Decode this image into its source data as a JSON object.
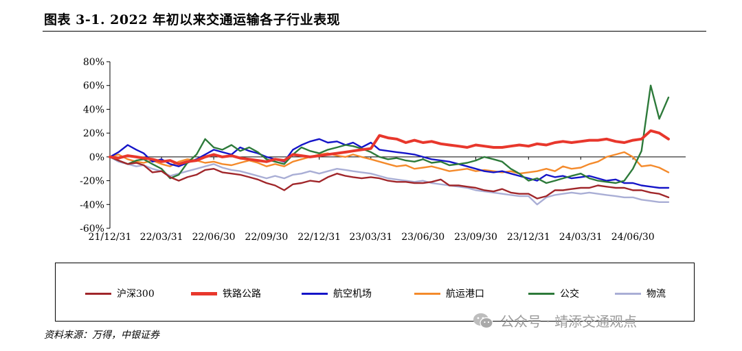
{
  "figure": {
    "title": "图表 3-1. 2022 年初以来交通运输各子行业表现",
    "source": "资料来源：万得，中银证券",
    "watermark": "公众号 · 靖添交通观点",
    "watermark_icon": "wechat-icon"
  },
  "chart_data": {
    "type": "line",
    "title": "",
    "xlabel": "",
    "ylabel": "",
    "ylim": [
      -60,
      80
    ],
    "yticks": [
      -60,
      -40,
      -20,
      0,
      20,
      40,
      60,
      80
    ],
    "ytick_labels": [
      "-60%",
      "-40%",
      "-20%",
      "0%",
      "20%",
      "40%",
      "60%",
      "80%"
    ],
    "x_range": [
      "21/12/31",
      "24/09/30"
    ],
    "xtick_labels": [
      "21/12/31",
      "22/03/31",
      "22/06/30",
      "22/09/30",
      "22/12/31",
      "23/03/31",
      "23/06/30",
      "23/09/30",
      "23/12/31",
      "24/03/31",
      "24/06/30"
    ],
    "grid": false,
    "legend_position": "bottom",
    "series": [
      {
        "name": "沪深300",
        "color": "#A0262A",
        "x": [
          "21/12/31",
          "22/01/15",
          "22/01/31",
          "22/02/15",
          "22/02/28",
          "22/03/15",
          "22/03/31",
          "22/04/15",
          "22/04/30",
          "22/05/15",
          "22/05/31",
          "22/06/15",
          "22/06/30",
          "22/07/15",
          "22/07/31",
          "22/08/15",
          "22/08/31",
          "22/09/15",
          "22/09/30",
          "22/10/15",
          "22/10/31",
          "22/11/15",
          "22/11/30",
          "22/12/15",
          "22/12/31",
          "23/01/15",
          "23/01/31",
          "23/02/15",
          "23/02/28",
          "23/03/15",
          "23/03/31",
          "23/04/15",
          "23/04/30",
          "23/05/15",
          "23/05/31",
          "23/06/15",
          "23/06/30",
          "23/07/15",
          "23/07/31",
          "23/08/15",
          "23/08/31",
          "23/09/15",
          "23/09/30",
          "23/10/15",
          "23/10/31",
          "23/11/15",
          "23/11/30",
          "23/12/15",
          "23/12/31",
          "24/01/15",
          "24/01/31",
          "24/02/15",
          "24/02/29",
          "24/03/15",
          "24/03/31",
          "24/04/15",
          "24/04/30",
          "24/05/15",
          "24/05/31",
          "24/06/15",
          "24/06/30",
          "24/07/15",
          "24/07/31",
          "24/08/15",
          "24/08/31"
        ],
        "y": [
          0,
          -3,
          -6,
          -5,
          -7,
          -13,
          -12,
          -17,
          -20,
          -17,
          -15,
          -11,
          -10,
          -13,
          -14,
          -15,
          -17,
          -19,
          -22,
          -24,
          -28,
          -23,
          -22,
          -20,
          -21,
          -17,
          -14,
          -16,
          -17,
          -18,
          -17,
          -18,
          -20,
          -21,
          -21,
          -22,
          -22,
          -21,
          -19,
          -24,
          -24,
          -25,
          -26,
          -28,
          -29,
          -27,
          -30,
          -31,
          -31,
          -35,
          -33,
          -28,
          -28,
          -27,
          -26,
          -26,
          -24,
          -25,
          -26,
          -26,
          -28,
          -28,
          -30,
          -31,
          -34
        ]
      },
      {
        "name": "铁路公路",
        "color": "#E8372C",
        "x": [
          "21/12/31",
          "22/01/15",
          "22/01/31",
          "22/02/15",
          "22/02/28",
          "22/03/15",
          "22/03/31",
          "22/04/15",
          "22/04/30",
          "22/05/15",
          "22/05/31",
          "22/06/15",
          "22/06/30",
          "22/07/15",
          "22/07/31",
          "22/08/15",
          "22/08/31",
          "22/09/15",
          "22/09/30",
          "22/10/15",
          "22/10/31",
          "22/11/15",
          "22/11/30",
          "22/12/15",
          "22/12/31",
          "23/01/15",
          "23/01/31",
          "23/02/15",
          "23/02/28",
          "23/03/15",
          "23/03/31",
          "23/04/15",
          "23/04/30",
          "23/05/15",
          "23/05/31",
          "23/06/15",
          "23/06/30",
          "23/07/15",
          "23/07/31",
          "23/08/15",
          "23/08/31",
          "23/09/15",
          "23/09/30",
          "23/10/15",
          "23/10/31",
          "23/11/15",
          "23/11/30",
          "23/12/15",
          "23/12/31",
          "24/01/15",
          "24/01/31",
          "24/02/15",
          "24/02/29",
          "24/03/15",
          "24/03/31",
          "24/04/15",
          "24/04/30",
          "24/05/15",
          "24/05/31",
          "24/06/15",
          "24/06/30",
          "24/07/15",
          "24/07/31",
          "24/08/15",
          "24/08/31"
        ],
        "y": [
          0,
          -1,
          1,
          0,
          -1,
          -2,
          -4,
          -3,
          -6,
          -4,
          -3,
          0,
          2,
          0,
          1,
          -1,
          -2,
          -3,
          -4,
          -2,
          -3,
          2,
          1,
          0,
          1,
          2,
          3,
          4,
          5,
          6,
          7,
          18,
          16,
          15,
          12,
          14,
          12,
          13,
          11,
          10,
          9,
          8,
          10,
          9,
          8,
          8,
          9,
          10,
          9,
          11,
          10,
          12,
          13,
          12,
          13,
          14,
          14,
          15,
          13,
          12,
          14,
          15,
          22,
          20,
          15
        ]
      },
      {
        "name": "航空机场",
        "color": "#1414C8",
        "x": [
          "21/12/31",
          "22/01/15",
          "22/01/31",
          "22/02/15",
          "22/02/28",
          "22/03/15",
          "22/03/31",
          "22/04/15",
          "22/04/30",
          "22/05/15",
          "22/05/31",
          "22/06/15",
          "22/06/30",
          "22/07/15",
          "22/07/31",
          "22/08/15",
          "22/08/31",
          "22/09/15",
          "22/09/30",
          "22/10/15",
          "22/10/31",
          "22/11/15",
          "22/11/30",
          "22/12/15",
          "22/12/31",
          "23/01/15",
          "23/01/31",
          "23/02/15",
          "23/02/28",
          "23/03/15",
          "23/03/31",
          "23/04/15",
          "23/04/30",
          "23/05/15",
          "23/05/31",
          "23/06/15",
          "23/06/30",
          "23/07/15",
          "23/07/31",
          "23/08/15",
          "23/08/31",
          "23/09/15",
          "23/09/30",
          "23/10/15",
          "23/10/31",
          "23/11/15",
          "23/11/30",
          "23/12/15",
          "23/12/31",
          "24/01/15",
          "24/01/31",
          "24/02/15",
          "24/02/29",
          "24/03/15",
          "24/03/31",
          "24/04/15",
          "24/04/30",
          "24/05/15",
          "24/05/31",
          "24/06/15",
          "24/06/30",
          "24/07/15",
          "24/07/31",
          "24/08/15",
          "24/08/31"
        ],
        "y": [
          0,
          4,
          10,
          6,
          3,
          -4,
          -2,
          -6,
          -8,
          -5,
          -2,
          2,
          6,
          4,
          2,
          8,
          5,
          3,
          0,
          -2,
          -4,
          6,
          10,
          13,
          15,
          12,
          13,
          10,
          12,
          8,
          12,
          6,
          5,
          4,
          3,
          2,
          0,
          -2,
          -3,
          -4,
          -6,
          -8,
          -10,
          -12,
          -13,
          -12,
          -14,
          -16,
          -18,
          -20,
          -15,
          -17,
          -16,
          -18,
          -17,
          -16,
          -18,
          -20,
          -19,
          -22,
          -22,
          -24,
          -25,
          -26,
          -26
        ]
      },
      {
        "name": "航运港口",
        "color": "#F48A2B",
        "x": [
          "21/12/31",
          "22/01/15",
          "22/01/31",
          "22/02/15",
          "22/02/28",
          "22/03/15",
          "22/03/31",
          "22/04/15",
          "22/04/30",
          "22/05/15",
          "22/05/31",
          "22/06/15",
          "22/06/30",
          "22/07/15",
          "22/07/31",
          "22/08/15",
          "22/08/31",
          "22/09/15",
          "22/09/30",
          "22/10/15",
          "22/10/31",
          "22/11/15",
          "22/11/30",
          "22/12/15",
          "22/12/31",
          "23/01/15",
          "23/01/31",
          "23/02/15",
          "23/02/28",
          "23/03/15",
          "23/03/31",
          "23/04/15",
          "23/04/30",
          "23/05/15",
          "23/05/31",
          "23/06/15",
          "23/06/30",
          "23/07/15",
          "23/07/31",
          "23/08/15",
          "23/08/31",
          "23/09/15",
          "23/09/30",
          "23/10/15",
          "23/10/31",
          "23/11/15",
          "23/11/30",
          "23/12/15",
          "23/12/31",
          "24/01/15",
          "24/01/31",
          "24/02/15",
          "24/02/29",
          "24/03/15",
          "24/03/31",
          "24/04/15",
          "24/04/30",
          "24/05/15",
          "24/05/31",
          "24/06/15",
          "24/06/30",
          "24/07/15",
          "24/07/31",
          "24/08/15",
          "24/08/31"
        ],
        "y": [
          0,
          2,
          -2,
          -4,
          -5,
          -3,
          -6,
          -8,
          -4,
          -2,
          -3,
          -5,
          -4,
          -6,
          -7,
          -5,
          -3,
          -5,
          -8,
          -6,
          -8,
          -4,
          -2,
          0,
          2,
          3,
          1,
          0,
          2,
          0,
          -2,
          -4,
          -6,
          -8,
          -7,
          -10,
          -9,
          -8,
          -10,
          -12,
          -11,
          -10,
          -12,
          -11,
          -12,
          -13,
          -12,
          -14,
          -13,
          -12,
          -10,
          -12,
          -8,
          -10,
          -9,
          -6,
          -4,
          0,
          2,
          4,
          0,
          -8,
          -7,
          -9,
          -13
        ]
      },
      {
        "name": "公交",
        "color": "#2D7A3A",
        "x": [
          "21/12/31",
          "22/01/15",
          "22/01/31",
          "22/02/15",
          "22/02/28",
          "22/03/15",
          "22/03/31",
          "22/04/15",
          "22/04/30",
          "22/05/15",
          "22/05/31",
          "22/06/15",
          "22/06/30",
          "22/07/15",
          "22/07/31",
          "22/08/15",
          "22/08/31",
          "22/09/15",
          "22/09/30",
          "22/10/15",
          "22/10/31",
          "22/11/15",
          "22/11/30",
          "22/12/15",
          "22/12/31",
          "23/01/15",
          "23/01/31",
          "23/02/15",
          "23/02/28",
          "23/03/15",
          "23/03/31",
          "23/04/15",
          "23/04/30",
          "23/05/15",
          "23/05/31",
          "23/06/15",
          "23/06/30",
          "23/07/15",
          "23/07/31",
          "23/08/15",
          "23/08/31",
          "23/09/15",
          "23/09/30",
          "23/10/15",
          "23/10/31",
          "23/11/15",
          "23/11/30",
          "23/12/15",
          "23/12/31",
          "24/01/15",
          "24/01/31",
          "24/02/15",
          "24/02/29",
          "24/03/15",
          "24/03/31",
          "24/04/15",
          "24/04/30",
          "24/05/15",
          "24/05/31",
          "24/06/15",
          "24/06/30",
          "24/07/15",
          "24/07/31",
          "24/08/15",
          "24/08/31"
        ],
        "y": [
          0,
          -3,
          -6,
          -3,
          -2,
          -6,
          -10,
          -18,
          -15,
          -5,
          2,
          15,
          8,
          6,
          10,
          5,
          8,
          4,
          -2,
          -4,
          -6,
          2,
          8,
          5,
          3,
          6,
          8,
          10,
          9,
          7,
          4,
          0,
          -2,
          -1,
          -3,
          -4,
          -2,
          -5,
          -4,
          -7,
          -6,
          -5,
          -3,
          0,
          -2,
          -4,
          -10,
          -14,
          -20,
          -18,
          -22,
          -20,
          -18,
          -16,
          -14,
          -18,
          -20,
          -21,
          -22,
          -20,
          -10,
          5,
          60,
          32,
          50
        ]
      },
      {
        "name": "物流",
        "color": "#A9AED5",
        "x": [
          "21/12/31",
          "22/01/15",
          "22/01/31",
          "22/02/15",
          "22/02/28",
          "22/03/15",
          "22/03/31",
          "22/04/15",
          "22/04/30",
          "22/05/15",
          "22/05/31",
          "22/06/15",
          "22/06/30",
          "22/07/15",
          "22/07/31",
          "22/08/15",
          "22/08/31",
          "22/09/15",
          "22/09/30",
          "22/10/15",
          "22/10/31",
          "22/11/15",
          "22/11/30",
          "22/12/15",
          "22/12/31",
          "23/01/15",
          "23/01/31",
          "23/02/15",
          "23/02/28",
          "23/03/15",
          "23/03/31",
          "23/04/15",
          "23/04/30",
          "23/05/15",
          "23/05/31",
          "23/06/15",
          "23/06/30",
          "23/07/15",
          "23/07/31",
          "23/08/15",
          "23/08/31",
          "23/09/15",
          "23/09/30",
          "23/10/15",
          "23/10/31",
          "23/11/15",
          "23/11/30",
          "23/12/15",
          "23/12/31",
          "24/01/15",
          "24/01/31",
          "24/02/15",
          "24/02/29",
          "24/03/15",
          "24/03/31",
          "24/04/15",
          "24/04/30",
          "24/05/15",
          "24/05/31",
          "24/06/15",
          "24/06/30",
          "24/07/15",
          "24/07/31",
          "24/08/15",
          "24/08/31"
        ],
        "y": [
          0,
          -4,
          -6,
          -8,
          -7,
          -10,
          -12,
          -16,
          -14,
          -12,
          -10,
          -8,
          -6,
          -9,
          -11,
          -12,
          -14,
          -16,
          -18,
          -16,
          -18,
          -15,
          -14,
          -12,
          -14,
          -12,
          -10,
          -11,
          -12,
          -13,
          -14,
          -16,
          -18,
          -19,
          -20,
          -21,
          -20,
          -22,
          -23,
          -24,
          -25,
          -26,
          -28,
          -29,
          -30,
          -31,
          -32,
          -33,
          -33,
          -40,
          -34,
          -32,
          -31,
          -30,
          -31,
          -30,
          -31,
          -32,
          -33,
          -34,
          -34,
          -36,
          -37,
          -38,
          -38
        ]
      }
    ]
  }
}
